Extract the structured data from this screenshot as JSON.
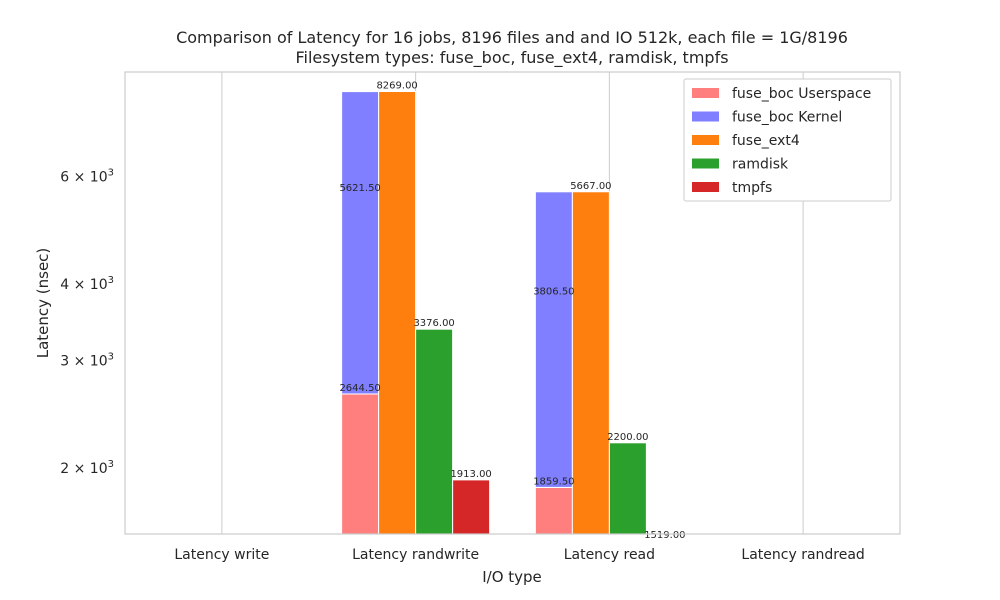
{
  "chart_data": {
    "type": "bar",
    "title": "Comparison of Latency for 16 jobs, 8196 files and  and IO 512k, each file = 1G/8196",
    "subtitle": "Filesystem types: fuse_boc, fuse_ext4, ramdisk, tmpfs",
    "xlabel": "I/O type",
    "ylabel": "Latency (nsec)",
    "yscale": "log",
    "ylim": [
      1560,
      8900
    ],
    "yticks": [
      {
        "value": 2000,
        "label": "2 × 10",
        "exp": "3"
      },
      {
        "value": 3000,
        "label": "3 × 10",
        "exp": "3"
      },
      {
        "value": 4000,
        "label": "4 × 10",
        "exp": "3"
      },
      {
        "value": 6000,
        "label": "6 × 10",
        "exp": "3"
      }
    ],
    "grid": true,
    "legend_position": "top-right",
    "categories": [
      "Latency write",
      "Latency randwrite",
      "Latency read",
      "Latency randread"
    ],
    "series": [
      {
        "name": "fuse_boc Userspace",
        "color": "#ff7f7f",
        "values": [
          null,
          2644.5,
          1859.5,
          null
        ],
        "labels": [
          "",
          "2644.50",
          "1859.50",
          ""
        ],
        "stacked_base": null
      },
      {
        "name": "fuse_boc Kernel",
        "color": "#7f7fff",
        "values": [
          null,
          5621.5,
          3806.5,
          null
        ],
        "labels": [
          "",
          "5621.50",
          "3806.50",
          ""
        ],
        "stacked_base": "fuse_boc Userspace"
      },
      {
        "name": "fuse_ext4",
        "color": "#ff7f0e",
        "values": [
          null,
          8269.0,
          5667.0,
          null
        ],
        "labels": [
          "",
          "8269.00",
          "5667.00",
          ""
        ],
        "stacked_base": null
      },
      {
        "name": "ramdisk",
        "color": "#2ca02c",
        "values": [
          null,
          3376.0,
          2200.0,
          null
        ],
        "labels": [
          "",
          "3376.00",
          "2200.00",
          ""
        ],
        "stacked_base": null
      },
      {
        "name": "tmpfs",
        "color": "#d62728",
        "values": [
          null,
          1913.0,
          1519.0,
          null
        ],
        "labels": [
          "",
          "1913.00",
          "1519.00",
          ""
        ],
        "stacked_base": null
      }
    ]
  }
}
